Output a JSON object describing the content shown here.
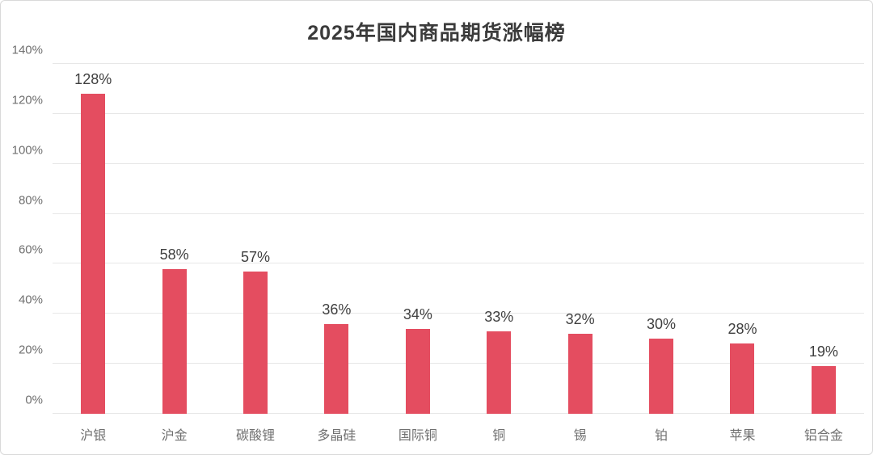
{
  "window": {
    "background": "#FFFFFF",
    "border_color": "#D9D9D9"
  },
  "chart_data": {
    "type": "bar",
    "title": "2025年国内商品期货涨幅榜",
    "categories": [
      "沪银",
      "沪金",
      "碳酸锂",
      "多晶硅",
      "国际铜",
      "铜",
      "锡",
      "铂",
      "苹果",
      "铝合金"
    ],
    "values": [
      128,
      58,
      57,
      36,
      34,
      33,
      32,
      30,
      28,
      19
    ],
    "data_labels": [
      "128%",
      "58%",
      "57%",
      "36%",
      "34%",
      "33%",
      "32%",
      "30%",
      "28%",
      "19%"
    ],
    "xlabel": "",
    "ylabel": "",
    "ylim": [
      0,
      140
    ],
    "ytick_step": 20,
    "ytick_labels": [
      "0%",
      "20%",
      "40%",
      "60%",
      "80%",
      "100%",
      "120%",
      "140%"
    ],
    "grid": true,
    "legend": "none",
    "bar_color": "#E44D60",
    "gridline_color": "#E7E7E7",
    "axis_text_color": "#6F6F6F",
    "data_label_color": "#3F3F3F",
    "title_color": "#3B3B3B"
  }
}
